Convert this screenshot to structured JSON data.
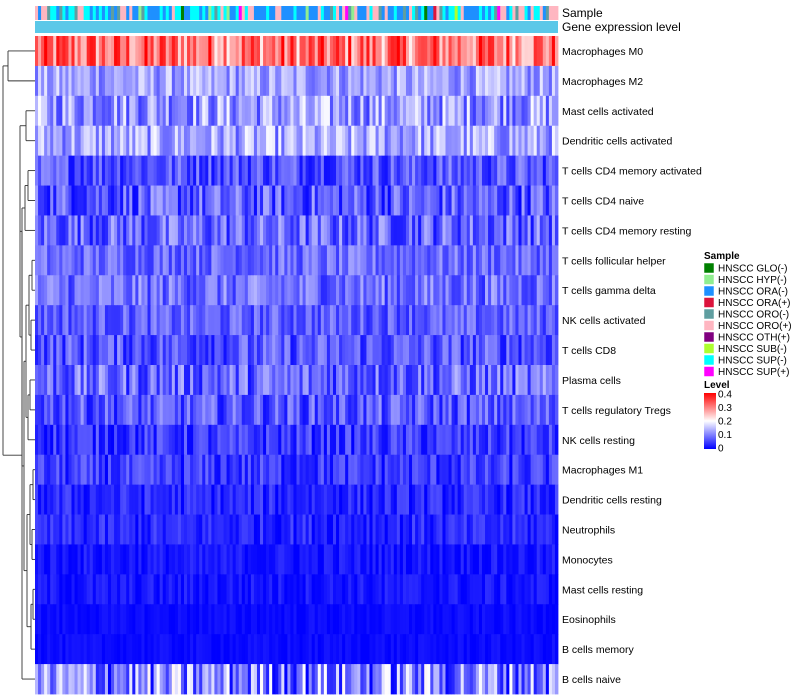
{
  "chart_data": {
    "type": "heatmap",
    "title": "",
    "n_samples": 172,
    "annotation_rows": [
      "Sample",
      "Gene expression level"
    ],
    "rows": [
      {
        "label": "Macrophages M0",
        "mean": 0.28,
        "spread": 0.09
      },
      {
        "label": "Macrophages M2",
        "mean": 0.11,
        "spread": 0.05
      },
      {
        "label": "Mast cells activated",
        "mean": 0.1,
        "spread": 0.07
      },
      {
        "label": "Dendritic cells activated",
        "mean": 0.11,
        "spread": 0.06
      },
      {
        "label": "T cells CD4 memory activated",
        "mean": 0.05,
        "spread": 0.05
      },
      {
        "label": "T cells CD4 naive",
        "mean": 0.05,
        "spread": 0.06
      },
      {
        "label": "T cells CD4 memory resting",
        "mean": 0.06,
        "spread": 0.06
      },
      {
        "label": "T cells follicular helper",
        "mean": 0.07,
        "spread": 0.04
      },
      {
        "label": "T cells gamma delta",
        "mean": 0.07,
        "spread": 0.05
      },
      {
        "label": "NK cells activated",
        "mean": 0.06,
        "spread": 0.04
      },
      {
        "label": "T cells CD8",
        "mean": 0.05,
        "spread": 0.05
      },
      {
        "label": "Plasma cells",
        "mean": 0.06,
        "spread": 0.06
      },
      {
        "label": "T cells regulatory  Tregs",
        "mean": 0.05,
        "spread": 0.05
      },
      {
        "label": "NK cells resting",
        "mean": 0.03,
        "spread": 0.04
      },
      {
        "label": "Macrophages M1",
        "mean": 0.03,
        "spread": 0.04
      },
      {
        "label": "Dendritic cells resting",
        "mean": 0.02,
        "spread": 0.03
      },
      {
        "label": "Neutrophils",
        "mean": 0.02,
        "spread": 0.03
      },
      {
        "label": "Monocytes",
        "mean": 0.01,
        "spread": 0.02
      },
      {
        "label": "Mast cells resting",
        "mean": 0.01,
        "spread": 0.02
      },
      {
        "label": "Eosinophils",
        "mean": 0.005,
        "spread": 0.01
      },
      {
        "label": "B cells memory",
        "mean": 0.005,
        "spread": 0.01
      },
      {
        "label": "B cells naive",
        "mean": 0.07,
        "spread": 0.1
      }
    ],
    "sample_legend": {
      "title": "Sample",
      "entries": [
        {
          "label": "HNSCC GLO(-)",
          "color": "#008000"
        },
        {
          "label": "HNSCC HYP(-)",
          "color": "#90ee90"
        },
        {
          "label": "HNSCC ORA(-)",
          "color": "#1e90ff"
        },
        {
          "label": "HNSCC ORA(+)",
          "color": "#dc143c"
        },
        {
          "label": "HNSCC ORO(-)",
          "color": "#5f9ea0"
        },
        {
          "label": "HNSCC ORO(+)",
          "color": "#ffb6c1"
        },
        {
          "label": "HNSCC OTH(+)",
          "color": "#800080"
        },
        {
          "label": "HNSCC SUB(-)",
          "color": "#adff2f"
        },
        {
          "label": "HNSCC SUP(-)",
          "color": "#00ffff"
        },
        {
          "label": "HNSCC SUP(+)",
          "color": "#ff00ff"
        }
      ]
    },
    "level_legend": {
      "title": "Level",
      "ticks": [
        "0.4",
        "0.3",
        "0.2",
        "0.1",
        "0"
      ],
      "range": [
        0,
        0.4
      ],
      "colors": [
        "#0000ff",
        "#ffffff",
        "#ff0000"
      ]
    },
    "gene_expression_bar_color": "#5bc8e8"
  }
}
